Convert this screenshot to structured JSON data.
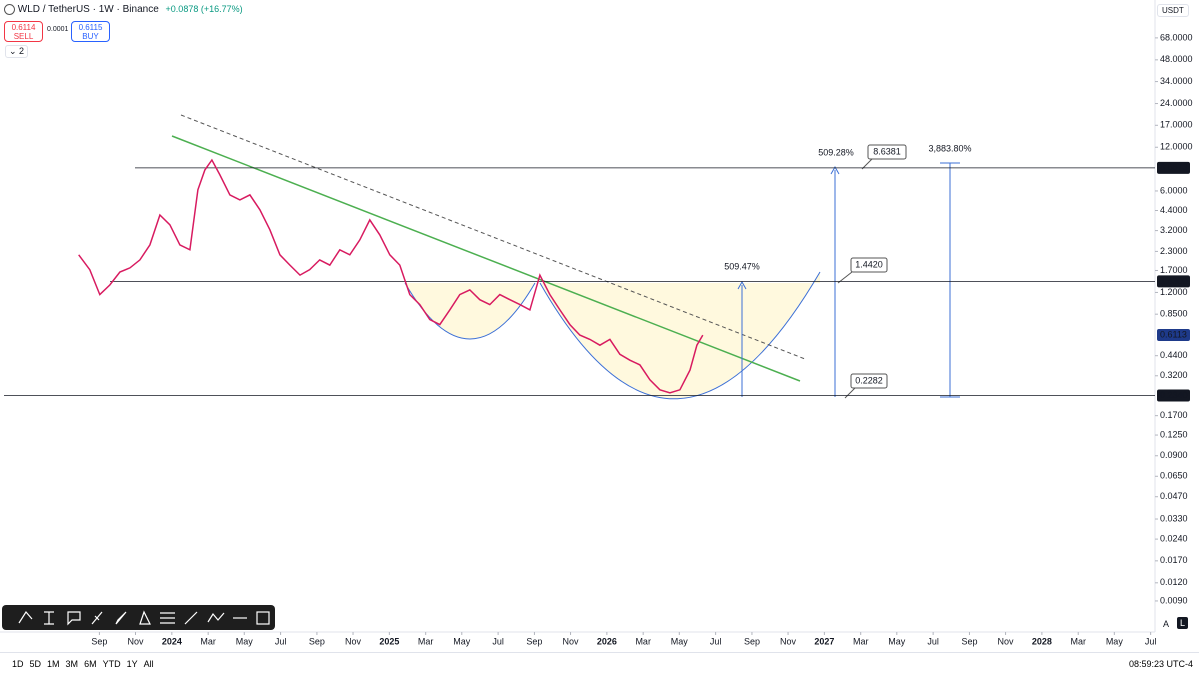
{
  "ui": {
    "symbol": "WLD / TetherUS · 1W · Binance",
    "change": "+0.0878 (+16.77%)",
    "sell_price": "0.6114",
    "sell": "SELL",
    "spread": "0.0001",
    "buy_price": "0.6115",
    "buy": "BUY",
    "indicators": "2",
    "currency": "USDT",
    "ranges": [
      "1D",
      "5D",
      "1M",
      "3M",
      "6M",
      "YTD",
      "1Y",
      "All"
    ],
    "clock": "08:59:23 UTC-4",
    "scale_buttons": [
      "A",
      "L"
    ]
  },
  "chart_data": {
    "type": "line",
    "log_scale": true,
    "xlim": [
      2023.21,
      2028.52
    ],
    "ylim": [
      0.0055,
      124
    ],
    "xticks": [
      {
        "value": 2023.667,
        "label": "Sep"
      },
      {
        "value": 2023.833,
        "label": "Nov"
      },
      2024,
      {
        "value": 2024.167,
        "label": "Mar"
      },
      {
        "value": 2024.333,
        "label": "May"
      },
      {
        "value": 2024.5,
        "label": "Jul"
      },
      {
        "value": 2024.667,
        "label": "Sep"
      },
      {
        "value": 2024.833,
        "label": "Nov"
      },
      2025,
      {
        "value": 2025.167,
        "label": "Mar"
      },
      {
        "value": 2025.333,
        "label": "May"
      },
      {
        "value": 2025.5,
        "label": "Jul"
      },
      {
        "value": 2025.667,
        "label": "Sep"
      },
      {
        "value": 2025.833,
        "label": "Nov"
      },
      2026,
      {
        "value": 2026.167,
        "label": "Mar"
      },
      {
        "value": 2026.333,
        "label": "May"
      },
      {
        "value": 2026.5,
        "label": "Jul"
      },
      {
        "value": 2026.667,
        "label": "Sep"
      },
      {
        "value": 2026.833,
        "label": "Nov"
      },
      2027,
      {
        "value": 2027.167,
        "label": "Mar"
      },
      {
        "value": 2027.333,
        "label": "May"
      },
      {
        "value": 2027.5,
        "label": "Jul"
      },
      {
        "value": 2027.667,
        "label": "Sep"
      },
      {
        "value": 2027.833,
        "label": "Nov"
      },
      2028,
      {
        "value": 2028.167,
        "label": "Mar"
      },
      {
        "value": 2028.333,
        "label": "May"
      },
      {
        "value": 2028.5,
        "label": "Jul"
      }
    ],
    "yticks": [
      {
        "value": 68,
        "label": "68.0000"
      },
      {
        "value": 48,
        "label": "48.0000"
      },
      {
        "value": 34,
        "label": "34.0000"
      },
      {
        "value": 24,
        "label": "24.0000"
      },
      {
        "value": 17,
        "label": "17.0000"
      },
      {
        "value": 12,
        "label": "12.0000"
      },
      {
        "value": 6,
        "label": "6.0000"
      },
      {
        "value": 4.4,
        "label": "4.4000"
      },
      {
        "value": 3.2,
        "label": "3.2000"
      },
      {
        "value": 2.3,
        "label": "2.3000"
      },
      {
        "value": 1.7,
        "label": "1.7000"
      },
      {
        "value": 1.2,
        "label": "1.2000"
      },
      {
        "value": 0.85,
        "label": "0.8500"
      },
      {
        "value": 0.44,
        "label": "0.4400"
      },
      {
        "value": 0.32,
        "label": "0.3200"
      },
      {
        "value": 0.17,
        "label": "0.1700"
      },
      {
        "value": 0.125,
        "label": "0.1250"
      },
      {
        "value": 0.09,
        "label": "0.0900"
      },
      {
        "value": 0.065,
        "label": "0.0650"
      },
      {
        "value": 0.047,
        "label": "0.0470"
      },
      {
        "value": 0.033,
        "label": "0.0330"
      },
      {
        "value": 0.024,
        "label": "0.0240"
      },
      {
        "value": 0.017,
        "label": "0.0170"
      },
      {
        "value": 0.012,
        "label": "0.0120"
      },
      {
        "value": 0.009,
        "label": "0.0090"
      }
    ],
    "series": [
      {
        "name": "WLD",
        "color": "#d81b60",
        "x": [
          2023.572,
          2023.623,
          2023.669,
          2023.715,
          2023.761,
          2023.807,
          2023.853,
          2023.899,
          2023.945,
          2023.991,
          2024.037,
          2024.083,
          2024.12,
          2024.152,
          2024.184,
          2024.221,
          2024.267,
          2024.313,
          2024.359,
          2024.405,
          2024.451,
          2024.497,
          2024.543,
          2024.589,
          2024.634,
          2024.68,
          2024.726,
          2024.772,
          2024.818,
          2024.864,
          2024.91,
          2024.956,
          2025.002,
          2025.048,
          2025.094,
          2025.14,
          2025.186,
          2025.232,
          2025.278,
          2025.324,
          2025.37,
          2025.416,
          2025.462,
          2025.508,
          2025.554,
          2025.6,
          2025.646,
          2025.692,
          2025.738,
          2025.784,
          2025.83,
          2025.876,
          2025.922,
          2025.968,
          2026.014,
          2026.06,
          2026.106,
          2026.152,
          2026.198,
          2026.244,
          2026.29,
          2026.336,
          2026.382,
          2026.414,
          2026.441
        ],
        "values": [
          2.18,
          1.72,
          1.16,
          1.35,
          1.66,
          1.77,
          2.01,
          2.55,
          4.1,
          3.51,
          2.55,
          2.36,
          6.11,
          8.38,
          9.81,
          7.74,
          5.64,
          5.21,
          5.64,
          4.45,
          3.24,
          2.18,
          1.85,
          1.58,
          1.72,
          2.01,
          1.85,
          2.36,
          2.18,
          2.76,
          3.79,
          2.99,
          2.18,
          1.85,
          1.16,
          0.99,
          0.78,
          0.72,
          0.91,
          1.16,
          1.25,
          1.07,
          0.99,
          1.16,
          1.07,
          0.99,
          0.91,
          1.58,
          1.16,
          0.91,
          0.72,
          0.61,
          0.57,
          0.52,
          0.57,
          0.45,
          0.41,
          0.38,
          0.3,
          0.256,
          0.244,
          0.256,
          0.35,
          0.52,
          0.61
        ]
      }
    ],
    "levels": [
      {
        "value": 8.6573,
        "label": "8.6573"
      },
      {
        "value": 1.43,
        "label": "1.4300"
      },
      {
        "value": 0.234,
        "label": "0.2340"
      }
    ],
    "last_price": {
      "value": 0.6113,
      "label": "0.6113"
    },
    "annotations": [
      "509.28%",
      "8.6381",
      "3,883.80%",
      "509.47%",
      "1.4420",
      "0.2282"
    ]
  }
}
